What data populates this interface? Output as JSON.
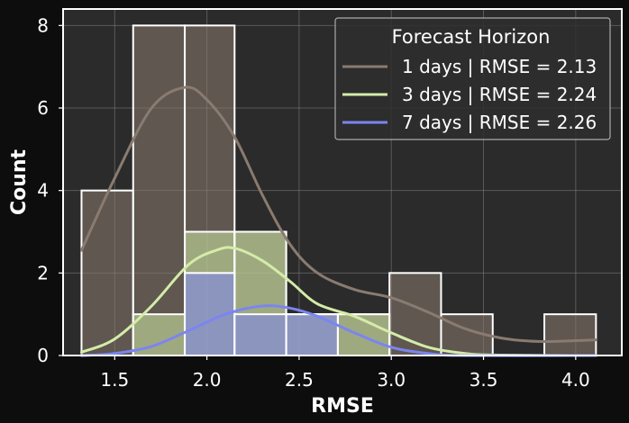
{
  "chart_data": {
    "type": "histogram",
    "xlabel": "RMSE",
    "ylabel": "Count",
    "xlim": [
      1.22,
      4.25
    ],
    "ylim": [
      0,
      8.4
    ],
    "x_ticks": [
      "1.5",
      "2.0",
      "2.5",
      "3.0",
      "3.5",
      "4.0"
    ],
    "x_tick_values": [
      1.5,
      2.0,
      2.5,
      3.0,
      3.5,
      4.0
    ],
    "y_ticks": [
      "0",
      "2",
      "4",
      "6",
      "8"
    ],
    "y_tick_values": [
      0,
      2,
      4,
      6,
      8
    ],
    "grid": true,
    "legend": {
      "title": "Forecast Horizon",
      "placement": "top-right"
    },
    "bin_edges": [
      1.32,
      1.6,
      1.88,
      2.15,
      2.43,
      2.71,
      2.99,
      3.27,
      3.55,
      3.83,
      4.11
    ],
    "series": [
      {
        "name": "1 days | RMSE = 2.13",
        "color": "#8a7b70",
        "counts": [
          4,
          8,
          8,
          3,
          1,
          1,
          2,
          1,
          0,
          1
        ],
        "kde": [
          [
            1.32,
            2.55
          ],
          [
            1.5,
            4.3
          ],
          [
            1.7,
            6.0
          ],
          [
            1.88,
            6.5
          ],
          [
            2.0,
            6.2
          ],
          [
            2.15,
            5.3
          ],
          [
            2.3,
            3.9
          ],
          [
            2.45,
            2.7
          ],
          [
            2.6,
            2.0
          ],
          [
            2.8,
            1.6
          ],
          [
            3.0,
            1.4
          ],
          [
            3.2,
            1.05
          ],
          [
            3.4,
            0.65
          ],
          [
            3.6,
            0.42
          ],
          [
            3.8,
            0.34
          ],
          [
            4.0,
            0.36
          ],
          [
            4.11,
            0.38
          ]
        ]
      },
      {
        "name": "3 days | RMSE = 2.24",
        "color": "#d4eca8",
        "counts": [
          0,
          1,
          3,
          3,
          1,
          1,
          0,
          0,
          0,
          0
        ],
        "kde": [
          [
            1.32,
            0.08
          ],
          [
            1.5,
            0.4
          ],
          [
            1.7,
            1.2
          ],
          [
            1.9,
            2.2
          ],
          [
            2.05,
            2.55
          ],
          [
            2.15,
            2.6
          ],
          [
            2.3,
            2.3
          ],
          [
            2.45,
            1.8
          ],
          [
            2.6,
            1.25
          ],
          [
            2.8,
            0.95
          ],
          [
            3.0,
            0.55
          ],
          [
            3.2,
            0.2
          ],
          [
            3.4,
            0.05
          ],
          [
            3.6,
            0.01
          ],
          [
            4.11,
            0.0
          ]
        ]
      },
      {
        "name": "7 days | RMSE = 2.26",
        "color": "#7b85f0",
        "counts": [
          0,
          0,
          2,
          1,
          1,
          0,
          0,
          0,
          0,
          0
        ],
        "kde": [
          [
            1.32,
            0.0
          ],
          [
            1.5,
            0.05
          ],
          [
            1.7,
            0.22
          ],
          [
            1.9,
            0.6
          ],
          [
            2.1,
            1.0
          ],
          [
            2.3,
            1.2
          ],
          [
            2.45,
            1.15
          ],
          [
            2.6,
            0.95
          ],
          [
            2.8,
            0.55
          ],
          [
            3.0,
            0.2
          ],
          [
            3.2,
            0.05
          ],
          [
            3.4,
            0.0
          ],
          [
            4.11,
            0.0
          ]
        ]
      }
    ]
  }
}
